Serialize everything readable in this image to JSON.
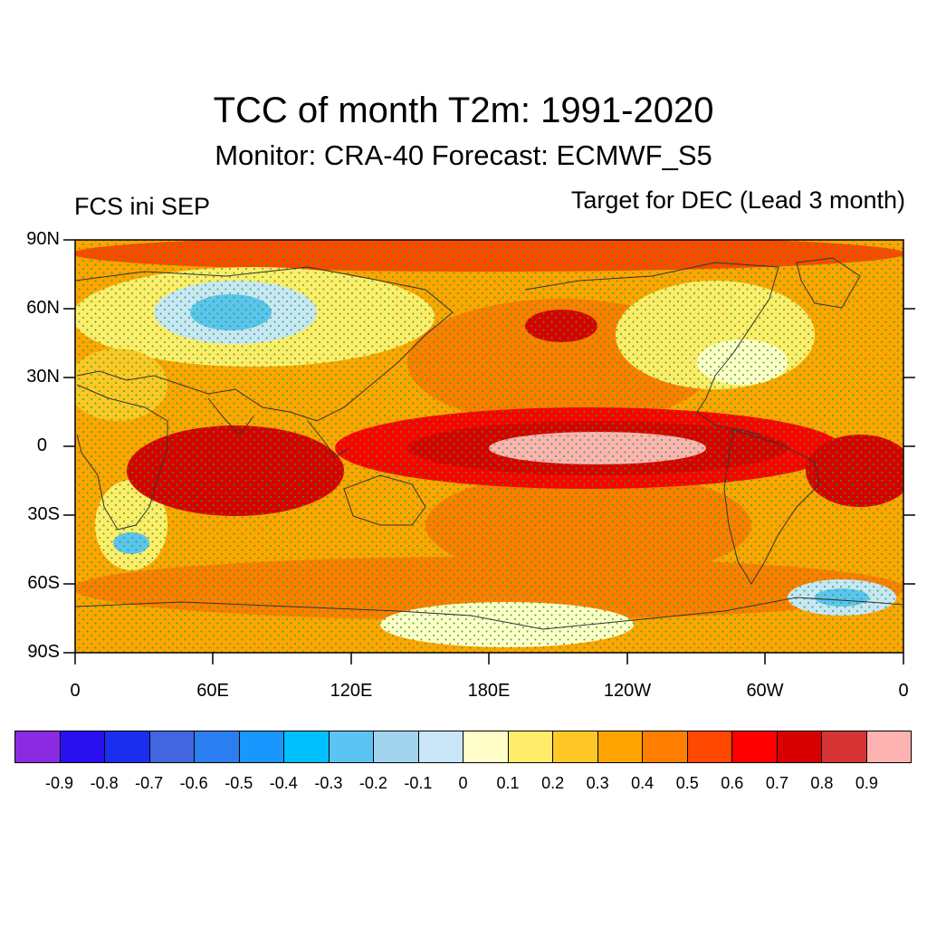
{
  "header": {
    "title": "TCC of month T2m: 1991-2020",
    "subtitle": "Monitor: CRA-40   Forecast: ECMWF_S5",
    "left_label": "FCS ini SEP",
    "right_label": "Target for DEC (Lead 3 month)"
  },
  "axes": {
    "lat_ticks": [
      "90N",
      "60N",
      "30N",
      "0",
      "30S",
      "60S",
      "90S"
    ],
    "lon_ticks": [
      "0",
      "60E",
      "120E",
      "180E",
      "120W",
      "60W",
      "0"
    ]
  },
  "colorbar": {
    "colors": [
      "#8a2be2",
      "#2a10f0",
      "#1a2ef0",
      "#4166e0",
      "#2a7ef0",
      "#1a96ff",
      "#00c0ff",
      "#5cc4f2",
      "#a2d4f0",
      "#c8e6f7",
      "#fffdc8",
      "#ffec6a",
      "#ffc726",
      "#ffa400",
      "#ff7e00",
      "#ff4800",
      "#ff0000",
      "#d80000",
      "#d63434",
      "#ffb2b2"
    ],
    "labels": [
      "-0.9",
      "-0.8",
      "-0.7",
      "-0.6",
      "-0.5",
      "-0.4",
      "-0.3",
      "-0.2",
      "-0.1",
      "0",
      "0.1",
      "0.2",
      "0.3",
      "0.4",
      "0.5",
      "0.6",
      "0.7",
      "0.8",
      "0.9"
    ]
  },
  "map": {
    "background_color": "#ffa400",
    "stipple_color": "#22aa22",
    "coastline_color": "#333333"
  }
}
